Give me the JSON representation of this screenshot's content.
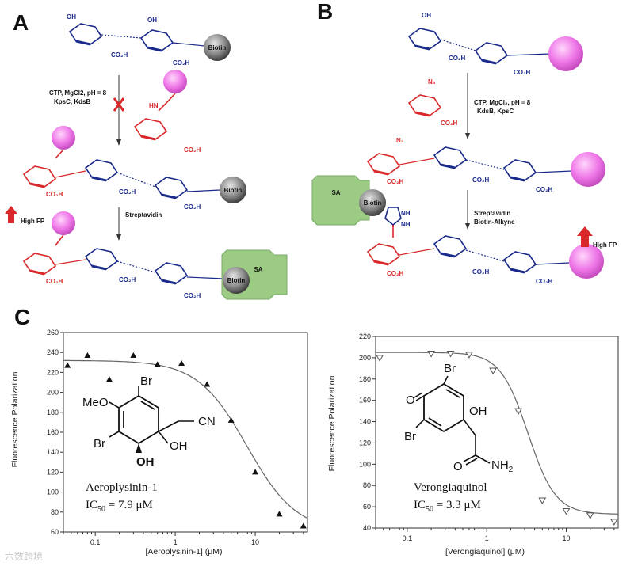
{
  "panels": {
    "A": {
      "letter": "A",
      "step1": [
        "CTP, MgCl2, pH = 8",
        "KpsC, KdsB"
      ],
      "step2": "Streptavidin",
      "biotin": "Biotin",
      "sa": "SA",
      "high_fp": "High FP",
      "labels": {
        "co2h": "CO₂H",
        "oh": "OH",
        "hn": "HN",
        "o": "O"
      }
    },
    "B": {
      "letter": "B",
      "step1": [
        "CTP, MgCl₂, pH = 8",
        "KdsB, KpsC"
      ],
      "step2": [
        "Streptavidin",
        "Biotin-Alkyne"
      ],
      "biotin": "Biotin",
      "sa": "SA",
      "high_fp": "High FP",
      "labels": {
        "n3": "N₃",
        "nh": "NH",
        "n": "N",
        "co2h": "CO₂H",
        "oh": "OH"
      }
    },
    "C": {
      "letter": "C"
    }
  },
  "chart_data": [
    {
      "type": "scatter",
      "ylabel": "Fluorescence Polarization",
      "xlabel": "[Aeroplysinin-1] (μM)",
      "x_scale": "log",
      "xlim": [
        0.04,
        45
      ],
      "ylim": [
        60,
        260
      ],
      "yticks": [
        60,
        80,
        100,
        120,
        140,
        160,
        180,
        200,
        220,
        240,
        260
      ],
      "xticks": [
        "0.1",
        "1",
        "10"
      ],
      "marker": "filled-triangle-up",
      "points": [
        [
          0.045,
          227
        ],
        [
          0.08,
          237
        ],
        [
          0.15,
          213
        ],
        [
          0.3,
          237
        ],
        [
          0.6,
          228
        ],
        [
          1.2,
          229
        ],
        [
          2.5,
          208
        ],
        [
          5,
          172
        ],
        [
          10,
          120
        ],
        [
          20,
          78
        ],
        [
          40,
          66
        ]
      ],
      "fit_curve": {
        "top": 232,
        "bottom": 60,
        "ic50": 7.9,
        "hill": 1.4
      },
      "compound": "Aeroplysinin-1",
      "ic50_label": "IC",
      "ic50_sub": "50",
      "ic50_value": " = 7.9 μM",
      "molecule_labels": {
        "meo": "MeO",
        "br1": "Br",
        "br2": "Br",
        "cn": "CN",
        "oh1": "OH",
        "oh2": "OH"
      }
    },
    {
      "type": "scatter",
      "ylabel": "Fluorescence Polarization",
      "xlabel": "[Verongiaquinol] (μM)",
      "x_scale": "log",
      "xlim": [
        0.04,
        45
      ],
      "ylim": [
        40,
        220
      ],
      "yticks": [
        40,
        60,
        80,
        100,
        120,
        140,
        160,
        180,
        200,
        220
      ],
      "xticks": [
        "0.1",
        "1",
        "10"
      ],
      "marker": "open-triangle-down",
      "points": [
        [
          0.045,
          200
        ],
        [
          0.2,
          204
        ],
        [
          0.35,
          204
        ],
        [
          0.6,
          203
        ],
        [
          1.2,
          188
        ],
        [
          2.5,
          150
        ],
        [
          5,
          66
        ],
        [
          10,
          56
        ],
        [
          20,
          52
        ],
        [
          40,
          46
        ]
      ],
      "fit_curve": {
        "top": 205,
        "bottom": 53,
        "ic50": 3.3,
        "hill": 2.5
      },
      "compound": "Verongiaquinol",
      "ic50_label": "IC",
      "ic50_sub": "50",
      "ic50_value": " = 3.3 μM",
      "molecule_labels": {
        "o": "O",
        "br1": "Br",
        "br2": "Br",
        "oh": "OH",
        "o2": "O",
        "nh2": "NH",
        "nh2_sub": "2"
      }
    }
  ],
  "watermark": "六数跨境"
}
